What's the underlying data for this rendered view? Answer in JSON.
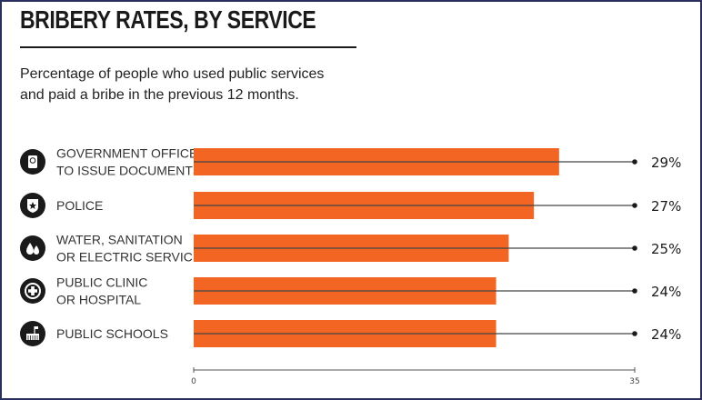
{
  "chart_data": {
    "type": "bar",
    "orientation": "horizontal",
    "title": "BRIBERY RATES, BY SERVICE",
    "subtitle": "Percentage of people who used public services and paid a bribe in the previous 12 months.",
    "subtitle_lines": [
      "Percentage of people who used public services",
      "and paid a bribe in the previous 12 months."
    ],
    "categories": [
      [
        "GOVERNMENT OFFICE",
        "TO ISSUE DOCUMENTS"
      ],
      [
        "POLICE"
      ],
      [
        "WATER, SANITATION",
        "OR ELECTRIC SERVICES"
      ],
      [
        "PUBLIC CLINIC",
        "OR HOSPITAL"
      ],
      [
        "PUBLIC SCHOOLS"
      ]
    ],
    "icons": [
      "passport-icon",
      "police-badge-icon",
      "water-drops-icon",
      "medical-cross-icon",
      "school-icon"
    ],
    "values": [
      29,
      27,
      25,
      24,
      24
    ],
    "value_labels": [
      "29%",
      "27%",
      "25%",
      "24%",
      "24%"
    ],
    "xlim": [
      0,
      35
    ],
    "x_ticks": [
      "0",
      "35"
    ],
    "bar_color": "#f26522",
    "grid": false
  }
}
